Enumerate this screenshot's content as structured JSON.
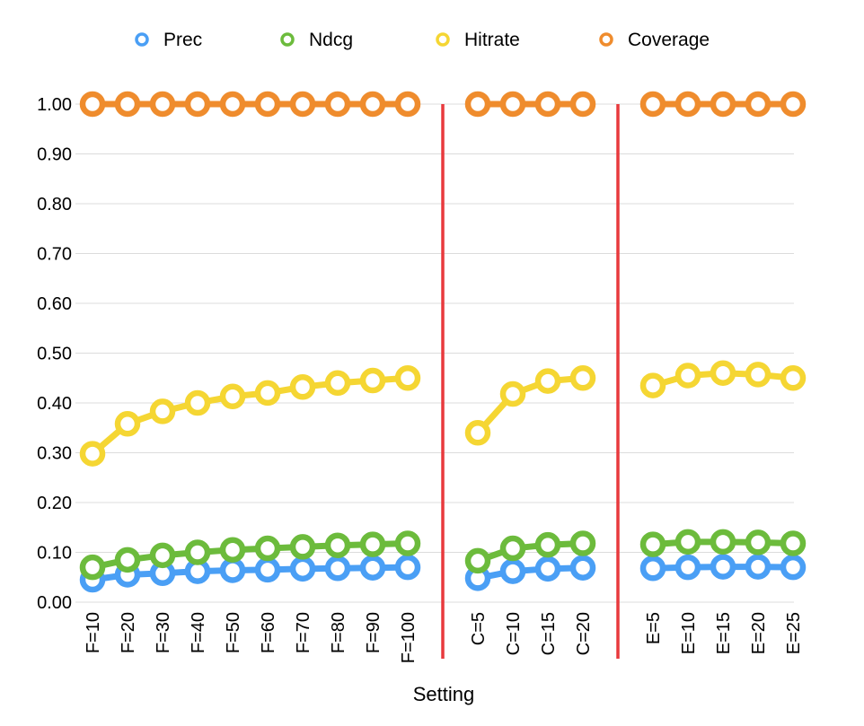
{
  "chart_data": {
    "type": "line",
    "xlabel": "Setting",
    "ylabel": "",
    "ylim": [
      0,
      1
    ],
    "yticks": [
      "0.00",
      "0.10",
      "0.20",
      "0.30",
      "0.40",
      "0.50",
      "0.60",
      "0.70",
      "0.80",
      "0.90",
      "1.00"
    ],
    "grid": true,
    "legend_position": "top",
    "categories": [
      "F=10",
      "F=20",
      "F=30",
      "F=40",
      "F=50",
      "F=60",
      "F=70",
      "F=80",
      "F=90",
      "F=100",
      "",
      "C=5",
      "C=10",
      "C=15",
      "C=20",
      "",
      "E=5",
      "E=10",
      "E=15",
      "E=20",
      "E=25"
    ],
    "separators_after_category": [
      "F=100",
      "C=20"
    ],
    "separator_color": "#e8393d",
    "series": [
      {
        "name": "Prec",
        "color": "#4a9ff5",
        "values": [
          0.045,
          0.055,
          0.058,
          0.062,
          0.064,
          0.065,
          0.067,
          0.068,
          0.069,
          0.07,
          null,
          0.048,
          0.062,
          0.067,
          0.069,
          null,
          0.068,
          0.07,
          0.071,
          0.071,
          0.07
        ]
      },
      {
        "name": "Ndcg",
        "color": "#6cbb3c",
        "values": [
          0.07,
          0.085,
          0.094,
          0.1,
          0.105,
          0.108,
          0.111,
          0.114,
          0.116,
          0.118,
          null,
          0.083,
          0.108,
          0.115,
          0.118,
          null,
          0.116,
          0.121,
          0.121,
          0.12,
          0.118
        ]
      },
      {
        "name": "Hitrate",
        "color": "#f5d633",
        "values": [
          0.298,
          0.358,
          0.383,
          0.4,
          0.413,
          0.42,
          0.432,
          0.44,
          0.445,
          0.45,
          null,
          0.34,
          0.418,
          0.444,
          0.45,
          null,
          0.435,
          0.455,
          0.46,
          0.457,
          0.45
        ]
      },
      {
        "name": "Coverage",
        "color": "#ef8c2d",
        "values": [
          1.0,
          1.0,
          1.0,
          1.0,
          1.0,
          1.0,
          1.0,
          1.0,
          1.0,
          1.0,
          null,
          1.0,
          1.0,
          1.0,
          1.0,
          null,
          1.0,
          1.0,
          1.0,
          1.0,
          1.0
        ]
      }
    ]
  }
}
